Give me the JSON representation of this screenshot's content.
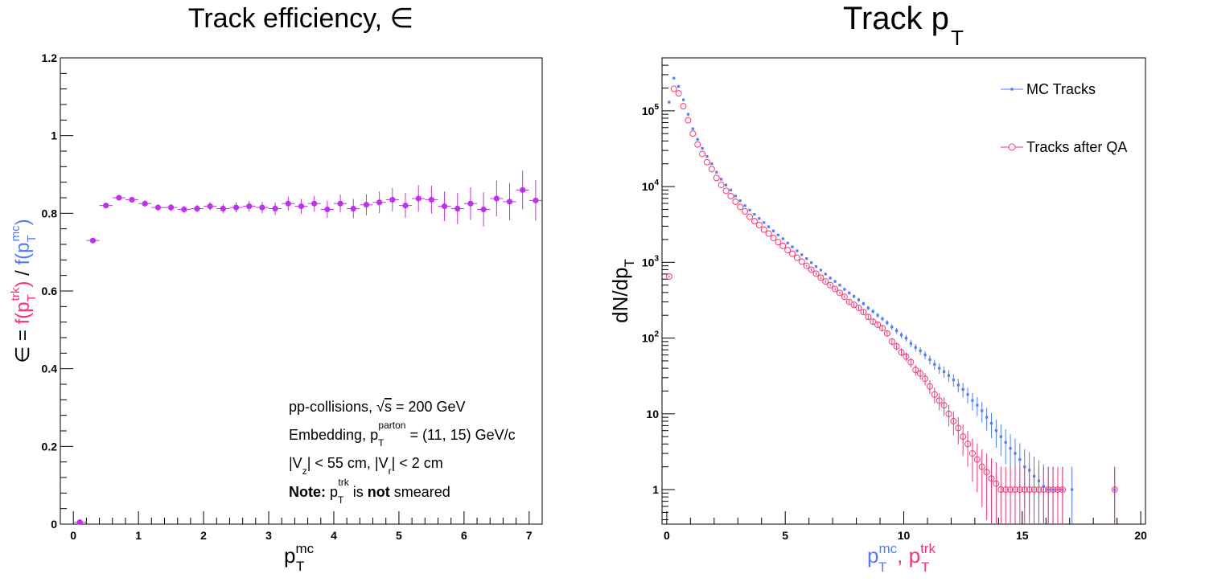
{
  "chart_data": [
    {
      "type": "scatter",
      "title": "Track efficiency, ∈",
      "xlabel": {
        "base": "p",
        "sub": "T",
        "sup": "mc"
      },
      "ylabel": {
        "prefix": "∈ = ",
        "num": {
          "text": "f(p",
          "sub": "T",
          "sup": "trk",
          "close": ")",
          "color": "#ff3370"
        },
        "sep": " / ",
        "den": {
          "text": "f(p",
          "sub": "T",
          "sup": "mc",
          "close": ")",
          "color": "#4f7cff"
        }
      },
      "xlim": [
        -0.2,
        7.2
      ],
      "ylim": [
        0,
        1.2
      ],
      "x_ticks": [
        "0",
        "1",
        "2",
        "3",
        "4",
        "5",
        "6",
        "7"
      ],
      "y_ticks": [
        "0",
        "0.2",
        "0.4",
        "0.6",
        "0.8",
        "1",
        "1.2"
      ],
      "marker_color": "#c030f0",
      "series": [
        {
          "x": [
            0.1,
            0.3,
            0.5,
            0.7,
            0.9,
            1.1,
            1.3,
            1.5,
            1.7,
            1.9,
            2.1,
            2.3,
            2.5,
            2.7,
            2.9,
            3.1,
            3.3,
            3.5,
            3.7,
            3.9,
            4.1,
            4.3,
            4.5,
            4.7,
            4.9,
            5.1,
            5.3,
            5.5,
            5.7,
            5.9,
            6.1,
            6.3,
            6.5,
            6.7,
            6.9,
            7.1
          ],
          "y": [
            0.005,
            0.73,
            0.82,
            0.84,
            0.835,
            0.825,
            0.815,
            0.815,
            0.81,
            0.812,
            0.818,
            0.812,
            0.815,
            0.818,
            0.815,
            0.812,
            0.825,
            0.818,
            0.825,
            0.81,
            0.825,
            0.812,
            0.822,
            0.828,
            0.835,
            0.82,
            0.838,
            0.835,
            0.818,
            0.812,
            0.825,
            0.81,
            0.838,
            0.83,
            0.86,
            0.833
          ],
          "yerr": [
            0.003,
            0.005,
            0.006,
            0.007,
            0.007,
            0.008,
            0.008,
            0.009,
            0.009,
            0.01,
            0.011,
            0.012,
            0.013,
            0.014,
            0.015,
            0.016,
            0.018,
            0.019,
            0.02,
            0.022,
            0.023,
            0.025,
            0.027,
            0.028,
            0.03,
            0.032,
            0.034,
            0.036,
            0.038,
            0.04,
            0.042,
            0.044,
            0.046,
            0.048,
            0.05,
            0.052
          ]
        }
      ],
      "annotations": [
        {
          "parts": [
            {
              "t": "pp-collisions, "
            },
            {
              "t": "√",
              "sqrt": true
            },
            {
              "t": "s",
              "over": true
            },
            {
              "t": " = 200 GeV"
            }
          ]
        },
        {
          "parts": [
            {
              "t": "Embedding, p"
            },
            {
              "t": "T",
              "sub": true
            },
            {
              "t": "parton",
              "sup": true
            },
            {
              "t": " = (11, 15) GeV/c"
            }
          ]
        },
        {
          "parts": [
            {
              "t": "|V"
            },
            {
              "t": "z",
              "sub": true
            },
            {
              "t": "| < 55 cm, |V"
            },
            {
              "t": "r",
              "sub": true
            },
            {
              "t": "| < 2 cm"
            }
          ]
        },
        {
          "parts": [
            {
              "t": "Note:",
              "bold": true
            },
            {
              "t": " p"
            },
            {
              "t": "T",
              "sub": true
            },
            {
              "t": "trk",
              "sup": true
            },
            {
              "t": " is "
            },
            {
              "t": "not",
              "bold": true
            },
            {
              "t": " smeared"
            }
          ]
        }
      ]
    },
    {
      "type": "scatter",
      "title": {
        "base": "Track p",
        "sub": "T"
      },
      "xlabel": [
        {
          "base": "p",
          "sub": "T",
          "sup": "mc",
          "color": "#4f7cff"
        },
        {
          "text": ", ",
          "color": "#ff3370"
        },
        {
          "base": "p",
          "sub": "T",
          "sup": "trk",
          "color": "#ff3370"
        }
      ],
      "ylabel": {
        "base": "dN/dp",
        "sub": "T"
      },
      "log_y": true,
      "xlim": [
        -0.2,
        20.2
      ],
      "ylim": [
        0.35,
        500000
      ],
      "x_ticks": [
        "0",
        "5",
        "10",
        "15",
        "20"
      ],
      "y_ticks": [
        {
          "v": 1,
          "label": "1"
        },
        {
          "v": 10,
          "label": "10"
        },
        {
          "v": 100,
          "base": "10",
          "exp": "2"
        },
        {
          "v": 1000,
          "base": "10",
          "exp": "3"
        },
        {
          "v": 10000,
          "base": "10",
          "exp": "4"
        },
        {
          "v": 100000,
          "base": "10",
          "exp": "5"
        }
      ],
      "legend": {
        "position": "top-right"
      },
      "series": [
        {
          "name": "MC Tracks",
          "color": "#4f7cff",
          "marker": "square",
          "x": [
            0.1,
            0.3,
            0.5,
            0.7,
            0.9,
            1.1,
            1.3,
            1.5,
            1.7,
            1.9,
            2.1,
            2.3,
            2.5,
            2.7,
            2.9,
            3.1,
            3.3,
            3.5,
            3.7,
            3.9,
            4.1,
            4.3,
            4.5,
            4.7,
            4.9,
            5.1,
            5.3,
            5.5,
            5.7,
            5.9,
            6.1,
            6.3,
            6.5,
            6.7,
            6.9,
            7.1,
            7.3,
            7.5,
            7.7,
            7.9,
            8.1,
            8.3,
            8.5,
            8.7,
            8.9,
            9.1,
            9.3,
            9.5,
            9.7,
            9.9,
            10.1,
            10.3,
            10.5,
            10.7,
            10.9,
            11.1,
            11.3,
            11.5,
            11.7,
            11.9,
            12.1,
            12.3,
            12.5,
            12.7,
            12.9,
            13.1,
            13.3,
            13.5,
            13.7,
            13.9,
            14.1,
            14.3,
            14.5,
            14.7,
            14.9,
            15.1,
            15.3,
            15.5,
            15.7,
            15.9,
            16.1,
            16.3,
            16.5,
            16.7,
            17.1,
            18.9
          ],
          "y": [
            130000,
            270000,
            210000,
            140000,
            90000,
            58000,
            42000,
            32000,
            25000,
            20000,
            15500,
            12500,
            10500,
            9000,
            7500,
            6500,
            5600,
            4900,
            4300,
            3800,
            3350,
            2950,
            2600,
            2300,
            2050,
            1800,
            1600,
            1420,
            1260,
            1120,
            990,
            880,
            790,
            700,
            620,
            560,
            500,
            440,
            395,
            355,
            320,
            285,
            250,
            225,
            200,
            180,
            160,
            140,
            125,
            110,
            100,
            85,
            75,
            68,
            60,
            52,
            45,
            40,
            36,
            32,
            28,
            24,
            21,
            18,
            15,
            13,
            11,
            9,
            7.5,
            6,
            5,
            4.2,
            3.5,
            3,
            2.5,
            2,
            1.8,
            1.5,
            1.3,
            1.1,
            1,
            1,
            1,
            1,
            1,
            1
          ],
          "yerr_rel": true
        },
        {
          "name": "Tracks after QA",
          "color": "#ff3370",
          "marker": "open-circle",
          "x": [
            0.1,
            0.3,
            0.5,
            0.7,
            0.9,
            1.1,
            1.3,
            1.5,
            1.7,
            1.9,
            2.1,
            2.3,
            2.5,
            2.7,
            2.9,
            3.1,
            3.3,
            3.5,
            3.7,
            3.9,
            4.1,
            4.3,
            4.5,
            4.7,
            4.9,
            5.1,
            5.3,
            5.5,
            5.7,
            5.9,
            6.1,
            6.3,
            6.5,
            6.7,
            6.9,
            7.1,
            7.3,
            7.5,
            7.7,
            7.9,
            8.1,
            8.3,
            8.5,
            8.7,
            8.9,
            9.1,
            9.3,
            9.5,
            9.7,
            9.9,
            10.1,
            10.3,
            10.5,
            10.7,
            10.9,
            11.1,
            11.3,
            11.5,
            11.7,
            11.9,
            12.1,
            12.3,
            12.5,
            12.7,
            12.9,
            13.1,
            13.3,
            13.5,
            13.7,
            13.9,
            14.1,
            14.3,
            14.5,
            14.7,
            14.9,
            15.1,
            15.3,
            15.5,
            15.7,
            15.9,
            16.1,
            16.3,
            16.5,
            16.7,
            18.9
          ],
          "y": [
            650,
            195000,
            170000,
            115000,
            75000,
            50000,
            36000,
            27000,
            21000,
            17000,
            13000,
            10500,
            8800,
            7500,
            6300,
            5400,
            4700,
            4000,
            3500,
            3100,
            2700,
            2400,
            2100,
            1850,
            1650,
            1450,
            1300,
            1150,
            1020,
            900,
            800,
            710,
            630,
            560,
            500,
            445,
            395,
            350,
            300,
            275,
            250,
            220,
            190,
            165,
            150,
            135,
            115,
            90,
            78,
            65,
            57,
            48,
            38,
            34,
            29,
            23,
            18,
            15,
            13,
            10,
            8,
            6.5,
            5,
            4,
            3,
            2.5,
            2,
            1.7,
            1.4,
            1.2,
            1,
            1,
            1,
            1,
            1,
            1,
            1,
            1,
            1,
            1,
            1,
            1,
            1,
            1,
            1
          ],
          "yerr_rel": true
        }
      ]
    }
  ]
}
